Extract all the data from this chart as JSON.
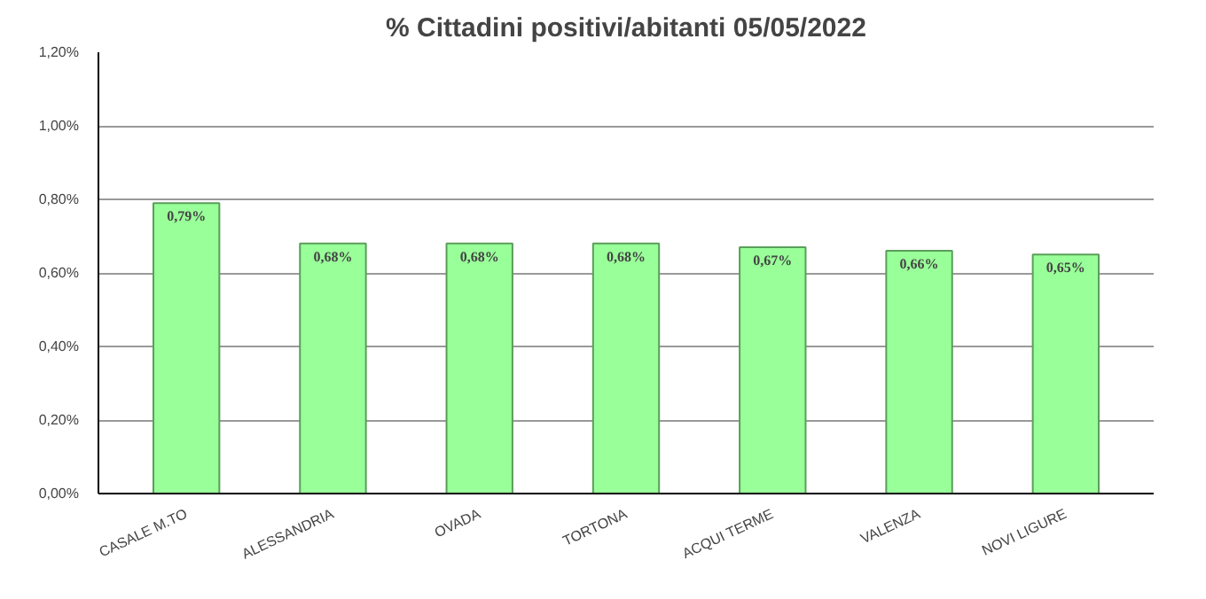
{
  "chart_data": {
    "type": "bar",
    "title": "% Cittadini positivi/abitanti 05/05/2022",
    "categories": [
      "CASALE M.TO",
      "ALESSANDRIA",
      "OVADA",
      "TORTONA",
      "ACQUI TERME",
      "VALENZA",
      "NOVI LIGURE"
    ],
    "values": [
      0.79,
      0.68,
      0.68,
      0.68,
      0.67,
      0.66,
      0.65
    ],
    "value_labels": [
      "0,79%",
      "0,68%",
      "0,68%",
      "0,68%",
      "0,67%",
      "0,66%",
      "0,65%"
    ],
    "color": "#99ff99",
    "ylim": [
      0,
      1.2
    ],
    "yticks": [
      {
        "value": 0,
        "label": "0,00%"
      },
      {
        "value": 0.2,
        "label": "0,20%"
      },
      {
        "value": 0.4,
        "label": "0,40%"
      },
      {
        "value": 0.6,
        "label": "0,60%"
      },
      {
        "value": 0.8,
        "label": "0,80%"
      },
      {
        "value": 1.0,
        "label": "1,00%"
      },
      {
        "value": 1.2,
        "label": "1,20%"
      }
    ],
    "grid": "y"
  }
}
